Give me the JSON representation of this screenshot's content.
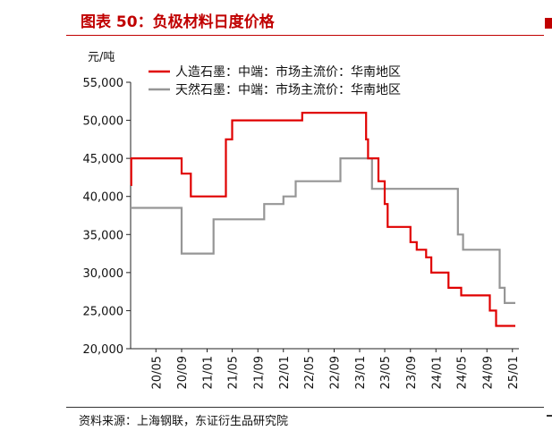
{
  "figure": {
    "title": "图表 50：负极材料日度价格",
    "source": "资料来源：上海钢联，东证衍生品研究院",
    "title_color": "#c00000"
  },
  "chart_data": {
    "type": "line",
    "ylabel": "元/吨",
    "xlabel": "",
    "ylim": [
      20000,
      55000
    ],
    "yticks": [
      20000,
      25000,
      30000,
      35000,
      40000,
      45000,
      50000,
      55000
    ],
    "ytick_labels": [
      "20,000",
      "25,000",
      "30,000",
      "35,000",
      "40,000",
      "45,000",
      "50,000",
      "55,000"
    ],
    "xlim": [
      "2020-01",
      "2025-02"
    ],
    "xticks": [
      "2020-05",
      "2020-09",
      "2021-01",
      "2021-05",
      "2021-09",
      "2022-01",
      "2022-05",
      "2022-09",
      "2023-01",
      "2023-05",
      "2023-09",
      "2024-01",
      "2024-05",
      "2024-09",
      "2025-01"
    ],
    "xtick_labels": [
      "20/05",
      "20/09",
      "21/01",
      "21/05",
      "21/09",
      "22/01",
      "22/05",
      "22/09",
      "23/01",
      "23/05",
      "23/09",
      "24/01",
      "24/05",
      "24/09",
      "25/01"
    ],
    "grid": false,
    "legend_position": "top",
    "series": [
      {
        "name": "人造石墨：中端：市场主流价：华南地区",
        "color": "#e00000",
        "step": true,
        "points": [
          [
            "2020-01-01",
            41500
          ],
          [
            "2020-01-04",
            45000
          ],
          [
            "2020-09-01",
            43000
          ],
          [
            "2020-10-15",
            40000
          ],
          [
            "2021-02-01",
            40000
          ],
          [
            "2021-04-01",
            47500
          ],
          [
            "2021-05-01",
            50000
          ],
          [
            "2022-04-01",
            51000
          ],
          [
            "2023-02-01",
            47500
          ],
          [
            "2023-02-10",
            45000
          ],
          [
            "2023-04-01",
            42000
          ],
          [
            "2023-05-01",
            39000
          ],
          [
            "2023-05-15",
            36000
          ],
          [
            "2023-09-01",
            34000
          ],
          [
            "2023-10-01",
            33000
          ],
          [
            "2023-11-15",
            32000
          ],
          [
            "2023-12-10",
            30000
          ],
          [
            "2024-03-01",
            28000
          ],
          [
            "2024-05-01",
            27000
          ],
          [
            "2024-09-15",
            25000
          ],
          [
            "2024-10-15",
            23000
          ],
          [
            "2025-01-15",
            23000
          ]
        ]
      },
      {
        "name": "天然石墨：中端：市场主流价：华南地区",
        "color": "#969696",
        "step": true,
        "points": [
          [
            "2020-01-01",
            38500
          ],
          [
            "2020-09-01",
            32500
          ],
          [
            "2021-02-01",
            37000
          ],
          [
            "2021-10-01",
            39000
          ],
          [
            "2022-01-01",
            40000
          ],
          [
            "2022-03-01",
            42000
          ],
          [
            "2022-10-01",
            45000
          ],
          [
            "2023-03-01",
            41000
          ],
          [
            "2024-04-15",
            35000
          ],
          [
            "2024-05-10",
            33000
          ],
          [
            "2024-11-01",
            28000
          ],
          [
            "2024-11-25",
            26000
          ],
          [
            "2025-01-15",
            26000
          ]
        ]
      }
    ]
  }
}
